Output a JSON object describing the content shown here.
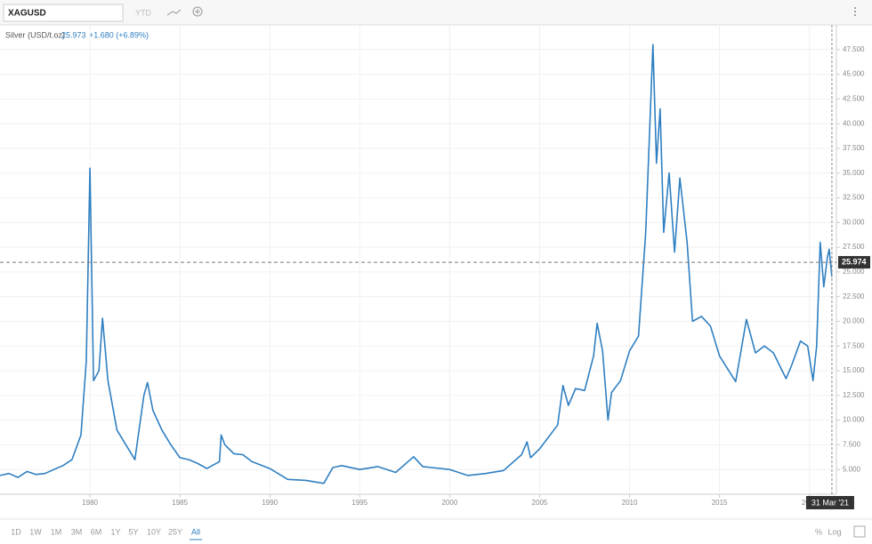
{
  "toolbar": {
    "symbol": "XAGUSD",
    "period": "YTD"
  },
  "chart_data": {
    "type": "line",
    "title": "Silver (USD/t.oz)",
    "price": "25.973",
    "change": "+1.680 (+6.89%)",
    "color": "#2f7fc1",
    "grid": true,
    "xlim": [
      1975,
      2021.5
    ],
    "xticks": [
      1980,
      1985,
      1990,
      1995,
      2000,
      2005,
      2010,
      2015,
      2020
    ],
    "ylim": [
      2.5,
      50
    ],
    "yticks": [
      {
        "value": 5,
        "label": "5.000"
      },
      {
        "value": 7.5,
        "label": "7.500"
      },
      {
        "value": 10,
        "label": "10.000"
      },
      {
        "value": 12.5,
        "label": "12.500"
      },
      {
        "value": 15,
        "label": "15.000"
      },
      {
        "value": 17.5,
        "label": "17.500"
      },
      {
        "value": 20,
        "label": "20.000"
      },
      {
        "value": 22.5,
        "label": "22.500"
      },
      {
        "value": 25,
        "label": "25.000"
      },
      {
        "value": 27.5,
        "label": "27.500"
      },
      {
        "value": 30,
        "label": "30.000"
      },
      {
        "value": 32.5,
        "label": "32.500"
      },
      {
        "value": 35,
        "label": "35.000"
      },
      {
        "value": 37.5,
        "label": "37.500"
      },
      {
        "value": 40,
        "label": "40.000"
      },
      {
        "value": 42.5,
        "label": "42.500"
      },
      {
        "value": 45,
        "label": "45.000"
      },
      {
        "value": 47.5,
        "label": "47.500"
      }
    ],
    "series": [
      {
        "color": "#2f7fc1",
        "x": [
          1975,
          1975.5,
          1976,
          1976.5,
          1977,
          1977.5,
          1978,
          1978.5,
          1979,
          1979.5,
          1979.8,
          1980,
          1980.2,
          1980.5,
          1980.7,
          1981,
          1981.5,
          1982,
          1982.5,
          1983,
          1983.2,
          1983.5,
          1984,
          1984.5,
          1985,
          1985.5,
          1986,
          1986.5,
          1987.2,
          1987.3,
          1987.5,
          1988,
          1988.5,
          1989,
          1990,
          1991,
          1992,
          1993,
          1993.5,
          1994,
          1995,
          1996,
          1997,
          1998,
          1998.5,
          1999,
          2000,
          2001,
          2002,
          2003,
          2004,
          2004.3,
          2004.5,
          2005,
          2006,
          2006.3,
          2006.6,
          2007,
          2007.5,
          2008,
          2008.2,
          2008.5,
          2008.8,
          2009,
          2009.5,
          2010,
          2010.5,
          2010.9,
          2011.3,
          2011.5,
          2011.7,
          2011.9,
          2012.2,
          2012.5,
          2012.8,
          2013.2,
          2013.5,
          2014,
          2014.5,
          2015,
          2015.9,
          2016.5,
          2017,
          2017.5,
          2018,
          2018.7,
          2019,
          2019.5,
          2019.9,
          2020.2,
          2020.4,
          2020.6,
          2020.8,
          2021,
          2021.1,
          2021.25
        ],
        "values": [
          4.4,
          4.6,
          4.2,
          4.8,
          4.5,
          4.6,
          5.0,
          5.4,
          6.0,
          8.5,
          16,
          35.5,
          14,
          15,
          20.3,
          14,
          9,
          7.5,
          6,
          12.5,
          13.8,
          11,
          9,
          7.5,
          6.2,
          6,
          5.6,
          5.1,
          5.8,
          8.5,
          7.5,
          6.6,
          6.5,
          5.8,
          5.1,
          4.0,
          3.9,
          3.6,
          5.2,
          5.4,
          5.0,
          5.3,
          4.7,
          6.3,
          5.3,
          5.2,
          5.0,
          4.4,
          4.6,
          4.9,
          6.5,
          7.8,
          6.2,
          7.1,
          9.5,
          13.5,
          11.5,
          13.2,
          13,
          16.5,
          19.8,
          17,
          10,
          12.8,
          14,
          17,
          18.5,
          29,
          48,
          36,
          41.5,
          29,
          35,
          27,
          34.5,
          28,
          20,
          20.5,
          19.5,
          16.5,
          13.9,
          20.2,
          16.8,
          17.5,
          16.8,
          14.2,
          15.5,
          18,
          17.5,
          14,
          17.5,
          28,
          23.5,
          26.5,
          27.3,
          24.5
        ]
      }
    ],
    "last_value": {
      "value": 25.974,
      "label": "25.974"
    },
    "crosshair_date": "31 Mar '21"
  },
  "ranges": [
    "1D",
    "1W",
    "1M",
    "3M",
    "6M",
    "1Y",
    "5Y",
    "10Y",
    "25Y",
    "All"
  ],
  "scale_options": [
    "%",
    "Log"
  ]
}
